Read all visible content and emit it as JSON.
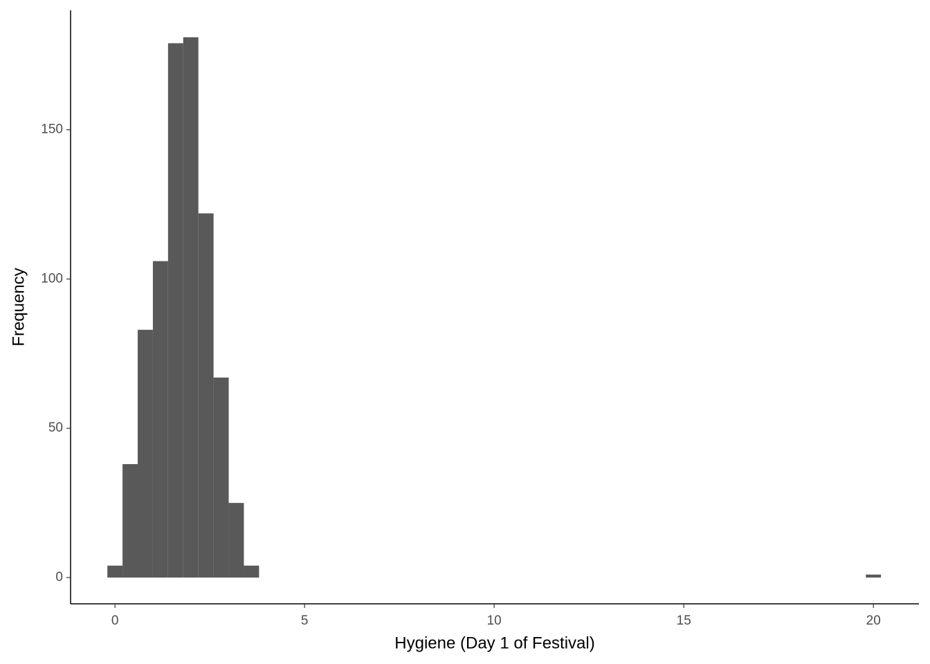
{
  "chart_data": {
    "type": "histogram",
    "x_label": "Hygiene (Day 1 of Festival)",
    "y_label": "Frequency",
    "bins": [
      -0.2,
      0.2,
      0.6,
      1,
      1.4,
      1.8,
      2.2,
      2.6,
      3,
      3.4,
      3.8,
      4.2,
      4.6,
      5,
      5.4,
      5.8,
      6.2,
      6.6,
      7,
      7.4,
      7.8,
      8.2,
      8.6,
      9,
      9.4,
      9.8,
      10.2,
      10.6,
      11,
      11.4,
      11.8,
      12.2,
      12.6,
      13,
      13.4,
      13.8,
      14.2,
      14.6,
      15,
      15.4,
      15.8,
      16.2,
      16.6,
      17,
      17.4,
      17.8,
      18.2,
      18.6,
      19,
      19.4,
      19.8,
      20.2
    ],
    "values": [
      4,
      38,
      83,
      106,
      179,
      181,
      122,
      67,
      25,
      4,
      0,
      0,
      0,
      0,
      0,
      0,
      0,
      0,
      0,
      0,
      0,
      0,
      0,
      0,
      0,
      0,
      0,
      0,
      0,
      0,
      0,
      0,
      0,
      0,
      0,
      0,
      0,
      0,
      0,
      0,
      0,
      0,
      0,
      0,
      0,
      0,
      0,
      0,
      0,
      0,
      1
    ],
    "color": "#595959",
    "xlim": [
      -1.17,
      21.2
    ],
    "xticks": [
      0,
      5,
      10,
      15,
      20
    ],
    "ylim": [
      -8.8,
      190
    ],
    "yticks": [
      0,
      50,
      100,
      150
    ],
    "grid": false
  }
}
